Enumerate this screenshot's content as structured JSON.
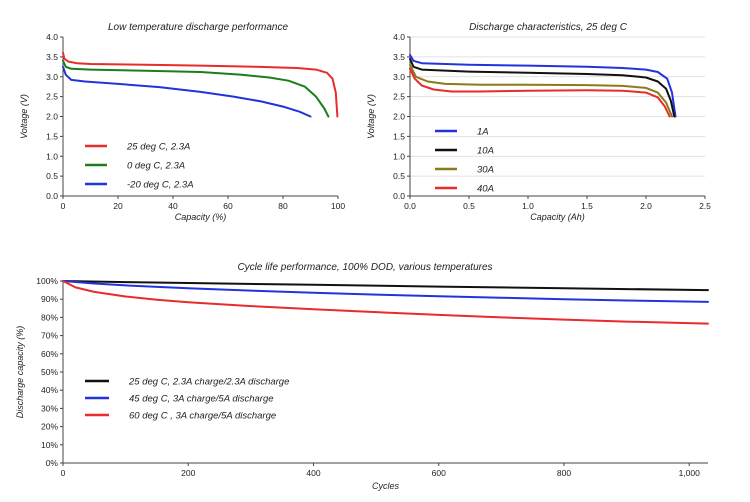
{
  "colors": {
    "red": "#e82b2b",
    "green": "#1a7f1a",
    "blue": "#2233dd",
    "black": "#111111",
    "olive": "#8a7a1a"
  },
  "chart_data": [
    {
      "id": "low-temp",
      "type": "line",
      "title": "Low temperature discharge performance",
      "xlabel": "Capacity (%)",
      "ylabel": "Voltage (V)",
      "xlim": [
        0,
        100
      ],
      "ylim": [
        0,
        4
      ],
      "xticks": [
        "0",
        "20",
        "40",
        "60",
        "80",
        "100"
      ],
      "xtick_values": [
        0,
        20,
        40,
        60,
        80,
        100
      ],
      "yticks": [
        "0.0",
        "0.5",
        "1.0",
        "1.5",
        "2.0",
        "2.5",
        "3.0",
        "3.5",
        "4.0"
      ],
      "ytick_values": [
        0,
        0.5,
        1,
        1.5,
        2,
        2.5,
        3,
        3.5,
        4
      ],
      "grid": false,
      "legend_position": "bottom-left",
      "series": [
        {
          "name": "25 deg C, 2.3A",
          "color": "#e82b2b",
          "points": [
            [
              0,
              3.6
            ],
            [
              0.5,
              3.45
            ],
            [
              2,
              3.38
            ],
            [
              5,
              3.34
            ],
            [
              10,
              3.32
            ],
            [
              30,
              3.3
            ],
            [
              50,
              3.28
            ],
            [
              70,
              3.25
            ],
            [
              85,
              3.22
            ],
            [
              92,
              3.18
            ],
            [
              96,
              3.1
            ],
            [
              98,
              2.95
            ],
            [
              99.2,
              2.6
            ],
            [
              99.8,
              2.0
            ]
          ]
        },
        {
          "name": "0 deg C, 2.3A",
          "color": "#1a7f1a",
          "points": [
            [
              0,
              3.4
            ],
            [
              1,
              3.25
            ],
            [
              3,
              3.2
            ],
            [
              10,
              3.18
            ],
            [
              30,
              3.15
            ],
            [
              50,
              3.12
            ],
            [
              65,
              3.05
            ],
            [
              75,
              2.98
            ],
            [
              82,
              2.9
            ],
            [
              88,
              2.75
            ],
            [
              92,
              2.5
            ],
            [
              95,
              2.2
            ],
            [
              96.5,
              2.0
            ]
          ]
        },
        {
          "name": "-20 deg C, 2.3A",
          "color": "#2233dd",
          "points": [
            [
              0,
              3.25
            ],
            [
              1,
              3.05
            ],
            [
              3,
              2.92
            ],
            [
              8,
              2.88
            ],
            [
              20,
              2.82
            ],
            [
              35,
              2.74
            ],
            [
              50,
              2.62
            ],
            [
              62,
              2.5
            ],
            [
              72,
              2.38
            ],
            [
              80,
              2.25
            ],
            [
              86,
              2.12
            ],
            [
              90,
              2.0
            ]
          ]
        }
      ]
    },
    {
      "id": "discharge-25",
      "type": "line",
      "title": "Discharge characteristics, 25 deg C",
      "xlabel": "Capacity (Ah)",
      "ylabel": "Voltage (V)",
      "xlim": [
        0,
        2.5
      ],
      "ylim": [
        0,
        4
      ],
      "xticks": [
        "0.0",
        "0.5",
        "1.0",
        "1.5",
        "2.0",
        "2.5"
      ],
      "xtick_values": [
        0,
        0.5,
        1,
        1.5,
        2,
        2.5
      ],
      "yticks": [
        "0.0",
        "0.5",
        "1.0",
        "1.5",
        "2.0",
        "2.5",
        "3.0",
        "3.5",
        "4.0"
      ],
      "ytick_values": [
        0,
        0.5,
        1,
        1.5,
        2,
        2.5,
        3,
        3.5,
        4
      ],
      "grid": true,
      "legend_position": "bottom-left",
      "series": [
        {
          "name": "1A",
          "color": "#2233dd",
          "points": [
            [
              0,
              3.55
            ],
            [
              0.03,
              3.4
            ],
            [
              0.1,
              3.34
            ],
            [
              0.5,
              3.3
            ],
            [
              1.0,
              3.28
            ],
            [
              1.5,
              3.25
            ],
            [
              1.8,
              3.22
            ],
            [
              2.0,
              3.18
            ],
            [
              2.1,
              3.12
            ],
            [
              2.18,
              2.95
            ],
            [
              2.22,
              2.6
            ],
            [
              2.25,
              2.0
            ]
          ]
        },
        {
          "name": "10A",
          "color": "#111111",
          "points": [
            [
              0,
              3.45
            ],
            [
              0.03,
              3.25
            ],
            [
              0.1,
              3.18
            ],
            [
              0.5,
              3.13
            ],
            [
              1.0,
              3.1
            ],
            [
              1.5,
              3.07
            ],
            [
              1.8,
              3.04
            ],
            [
              2.0,
              2.98
            ],
            [
              2.1,
              2.88
            ],
            [
              2.17,
              2.7
            ],
            [
              2.21,
              2.4
            ],
            [
              2.24,
              2.0
            ]
          ]
        },
        {
          "name": "30A",
          "color": "#8a7a1a",
          "points": [
            [
              0,
              3.3
            ],
            [
              0.05,
              3.0
            ],
            [
              0.15,
              2.88
            ],
            [
              0.3,
              2.82
            ],
            [
              0.6,
              2.8
            ],
            [
              1.0,
              2.8
            ],
            [
              1.5,
              2.79
            ],
            [
              1.8,
              2.77
            ],
            [
              2.0,
              2.72
            ],
            [
              2.1,
              2.6
            ],
            [
              2.17,
              2.35
            ],
            [
              2.22,
              2.0
            ]
          ]
        },
        {
          "name": "40A",
          "color": "#e82b2b",
          "points": [
            [
              0,
              3.2
            ],
            [
              0.04,
              2.95
            ],
            [
              0.1,
              2.78
            ],
            [
              0.2,
              2.68
            ],
            [
              0.35,
              2.63
            ],
            [
              0.6,
              2.63
            ],
            [
              1.0,
              2.65
            ],
            [
              1.5,
              2.66
            ],
            [
              1.8,
              2.65
            ],
            [
              2.0,
              2.6
            ],
            [
              2.1,
              2.48
            ],
            [
              2.16,
              2.25
            ],
            [
              2.2,
              2.0
            ]
          ]
        }
      ]
    },
    {
      "id": "cycle-life",
      "type": "line",
      "title": "Cycle life performance, 100% DOD, various temperatures",
      "xlabel": "Cycles",
      "ylabel": "Discharge capacity (%)",
      "xlim": [
        0,
        1030
      ],
      "ylim": [
        0,
        100
      ],
      "xticks": [
        "0",
        "200",
        "400",
        "600",
        "800",
        "1,000"
      ],
      "xtick_values": [
        0,
        200,
        400,
        600,
        800,
        1000
      ],
      "yticks": [
        "0%",
        "10%",
        "20%",
        "30%",
        "40%",
        "50%",
        "60%",
        "70%",
        "80%",
        "90%",
        "100%"
      ],
      "ytick_values": [
        0,
        10,
        20,
        30,
        40,
        50,
        60,
        70,
        80,
        90,
        100
      ],
      "grid": false,
      "legend_position": "bottom-left",
      "series": [
        {
          "name": "25 deg C, 2.3A charge/2.3A discharge",
          "color": "#111111",
          "points": [
            [
              0,
              100
            ],
            [
              100,
              99.4
            ],
            [
              200,
              98.9
            ],
            [
              400,
              97.9
            ],
            [
              600,
              96.9
            ],
            [
              800,
              96.0
            ],
            [
              1030,
              95.0
            ]
          ]
        },
        {
          "name": "45 deg C, 3A charge/5A discharge",
          "color": "#2233dd",
          "points": [
            [
              0,
              100
            ],
            [
              50,
              98.6
            ],
            [
              100,
              97.6
            ],
            [
              200,
              96.0
            ],
            [
              300,
              94.7
            ],
            [
              400,
              93.5
            ],
            [
              500,
              92.5
            ],
            [
              600,
              91.6
            ],
            [
              700,
              90.8
            ],
            [
              800,
              90.0
            ],
            [
              900,
              89.3
            ],
            [
              1030,
              88.5
            ]
          ]
        },
        {
          "name": "60 deg C , 3A charge/5A discharge",
          "color": "#e82b2b",
          "points": [
            [
              0,
              100
            ],
            [
              20,
              96.5
            ],
            [
              50,
              94.0
            ],
            [
              100,
              91.5
            ],
            [
              150,
              89.7
            ],
            [
              200,
              88.3
            ],
            [
              300,
              86.2
            ],
            [
              400,
              84.5
            ],
            [
              500,
              82.9
            ],
            [
              600,
              81.4
            ],
            [
              700,
              80.0
            ],
            [
              800,
              78.8
            ],
            [
              900,
              77.7
            ],
            [
              1030,
              76.6
            ]
          ]
        }
      ]
    }
  ]
}
